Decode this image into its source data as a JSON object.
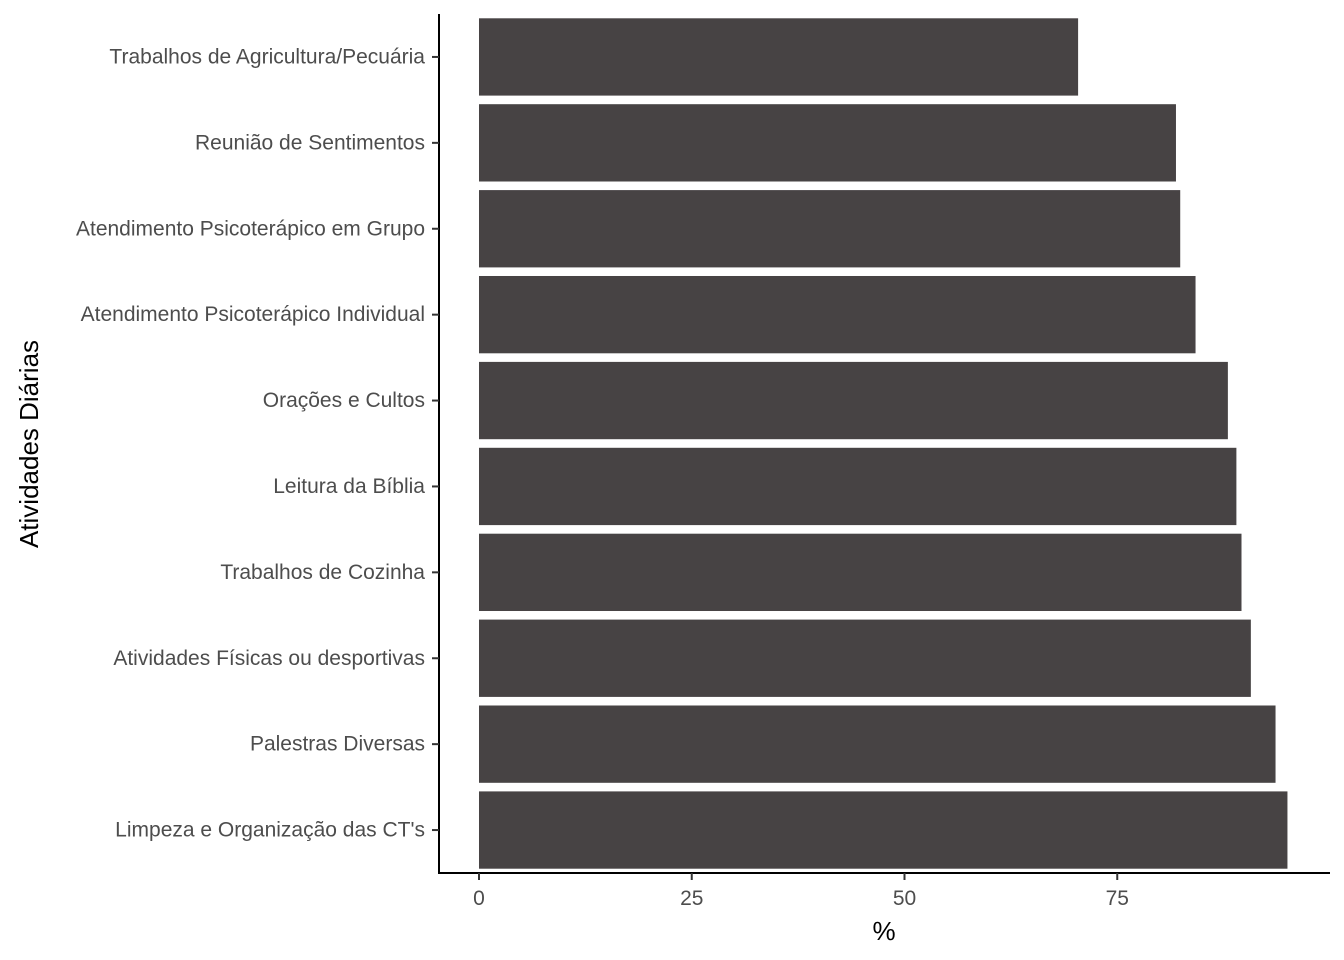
{
  "chart_data": {
    "type": "bar",
    "orientation": "horizontal",
    "categories": [
      "Trabalhos de Agricultura/Pecuária",
      "Reunião de Sentimentos",
      "Atendimento Psicoterápico em Grupo",
      "Atendimento Psicoterápico Individual",
      "Orações e Cultos",
      "Leitura da Bíblia",
      "Trabalhos de Cozinha",
      "Atividades Físicas ou desportivas",
      "Palestras Diversas",
      "Limpeza e Organização das CT's"
    ],
    "values": [
      70.4,
      81.9,
      82.4,
      84.2,
      88.0,
      89.0,
      89.6,
      90.7,
      93.6,
      95.0
    ],
    "title": "",
    "xlabel": "%",
    "ylabel": "Atividades Diárias",
    "xlim": [
      -4.7,
      100.0
    ],
    "xticks": [
      0,
      25,
      50,
      75
    ],
    "grid": false,
    "legend": "none",
    "bar_color": "#474344"
  }
}
